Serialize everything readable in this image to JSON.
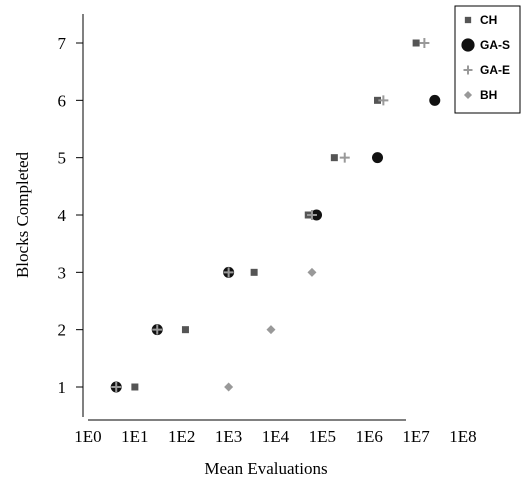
{
  "chart_data": {
    "type": "scatter",
    "xlabel": "Mean Evaluations",
    "ylabel": "Blocks Completed",
    "x_scale": "log10",
    "xlim": [
      1,
      100000000
    ],
    "ylim": [
      0.5,
      7.5
    ],
    "x_ticks": [
      1,
      10,
      100,
      1000,
      10000,
      100000,
      1000000,
      10000000,
      100000000
    ],
    "x_tick_labels": [
      "1E0",
      "1E1",
      "1E2",
      "1E3",
      "1E4",
      "1E5",
      "1E6",
      "1E7",
      "1E8"
    ],
    "y_ticks": [
      1,
      2,
      3,
      4,
      5,
      6,
      7
    ],
    "y_tick_labels": [
      "1",
      "2",
      "3",
      "4",
      "5",
      "6",
      "7"
    ],
    "grid": false,
    "legend_position": "top-right",
    "series": [
      {
        "name": "CH",
        "marker": "square",
        "color": "#555555",
        "x": [
          10,
          120,
          3500,
          50000,
          180000,
          1500000,
          10000000
        ],
        "y": [
          1,
          2,
          3,
          4,
          5,
          6,
          7
        ]
      },
      {
        "name": "GA-S",
        "marker": "circle",
        "color": "#111111",
        "x": [
          4,
          30,
          1000,
          75000,
          1500000,
          25000000
        ],
        "y": [
          1,
          2,
          3,
          4,
          5,
          6
        ]
      },
      {
        "name": "GA-E",
        "marker": "plus",
        "color": "#999999",
        "x": [
          4,
          30,
          1000,
          60000,
          300000,
          2000000,
          15000000
        ],
        "y": [
          1,
          2,
          3,
          4,
          5,
          6,
          7
        ]
      },
      {
        "name": "BH",
        "marker": "diamond",
        "color": "#999999",
        "x": [
          1000,
          8000,
          60000
        ],
        "y": [
          1,
          2,
          3
        ]
      }
    ]
  }
}
